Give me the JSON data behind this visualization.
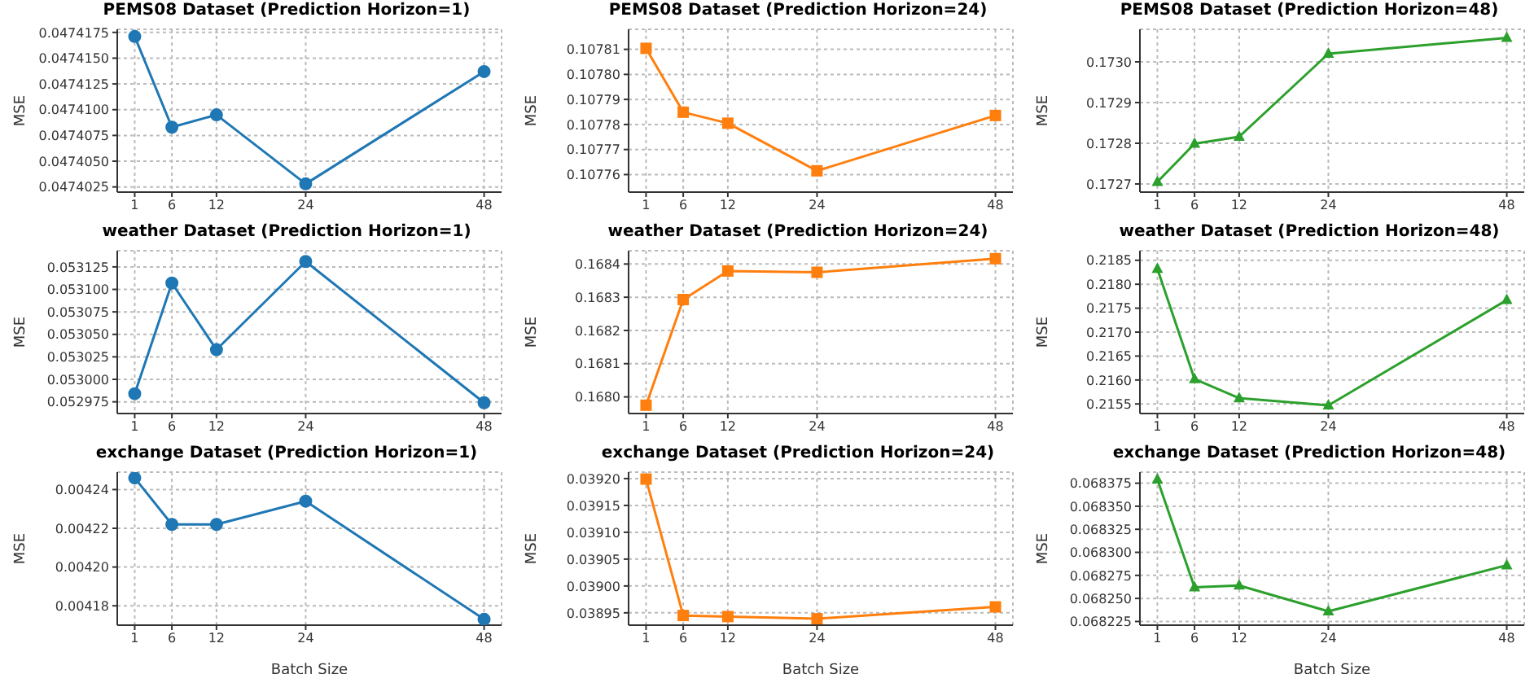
{
  "chart_data": [
    {
      "type": "line",
      "title": "PEMS08 Dataset (Prediction Horizon=1)",
      "ylabel": "MSE",
      "x": [
        1,
        6,
        12,
        24,
        48
      ],
      "xlim": [
        -1.35,
        50.35
      ],
      "xticks": [
        1,
        6,
        12,
        24,
        48
      ],
      "ylim": [
        0.047402,
        0.0474178
      ],
      "yticks": [
        0.0474025,
        {
          "value": 0.047405,
          "label": "0.0474050"
        },
        0.0474075,
        {
          "value": 0.04741,
          "label": "0.0474100"
        },
        0.0474125,
        {
          "value": 0.047415,
          "label": "0.0474150"
        },
        0.0474175
      ],
      "grid": true,
      "marker": "circle",
      "line_style": "solid",
      "series": [
        {
          "color": "#1f77b4",
          "values": [
            0.0474171,
            0.0474083,
            0.0474095,
            0.0474028,
            0.0474137
          ]
        }
      ]
    },
    {
      "type": "line",
      "title": "PEMS08 Dataset (Prediction Horizon=24)",
      "ylabel": "MSE",
      "x": [
        1,
        6,
        12,
        24,
        48
      ],
      "xlim": [
        -1.35,
        50.35
      ],
      "xticks": [
        1,
        6,
        12,
        24,
        48
      ],
      "ylim": [
        0.107753,
        0.107818
      ],
      "yticks": [
        0.10776,
        0.10777,
        0.10778,
        0.10779,
        {
          "value": 0.1078,
          "label": "0.10780"
        },
        0.10781
      ],
      "grid": true,
      "marker": "square",
      "line_style": "solid",
      "series": [
        {
          "color": "#ff7f0e",
          "values": [
            0.1078104,
            0.1077849,
            0.1077805,
            0.1077615,
            0.1077836
          ]
        }
      ]
    },
    {
      "type": "line",
      "title": "PEMS08 Dataset (Prediction Horizon=48)",
      "ylabel": "MSE",
      "x": [
        1,
        6,
        12,
        24,
        48
      ],
      "xlim": [
        -1.35,
        50.35
      ],
      "xticks": [
        1,
        6,
        12,
        24,
        48
      ],
      "ylim": [
        0.17268,
        0.17308
      ],
      "yticks": [
        0.1727,
        0.1728,
        0.1729,
        {
          "value": 0.173,
          "label": "0.1730"
        }
      ],
      "grid": true,
      "marker": "triangle",
      "line_style": "solid",
      "series": [
        {
          "color": "#2ca02c",
          "values": [
            0.172705,
            0.172799,
            0.172816,
            0.17302,
            0.173059
          ]
        }
      ]
    },
    {
      "type": "line",
      "title": "weather Dataset (Prediction Horizon=1)",
      "ylabel": "MSE",
      "x": [
        1,
        6,
        12,
        24,
        48
      ],
      "xlim": [
        -1.35,
        50.35
      ],
      "xticks": [
        1,
        6,
        12,
        24,
        48
      ],
      "ylim": [
        0.052962,
        0.053143
      ],
      "yticks": [
        0.052975,
        {
          "value": 0.053,
          "label": "0.053000"
        },
        0.053025,
        {
          "value": 0.05305,
          "label": "0.053050"
        },
        0.053075,
        {
          "value": 0.0531,
          "label": "0.053100"
        },
        0.053125
      ],
      "grid": true,
      "marker": "circle",
      "line_style": "solid",
      "series": [
        {
          "color": "#1f77b4",
          "values": [
            0.052984,
            0.053107,
            0.053033,
            0.053131,
            0.052974
          ]
        }
      ]
    },
    {
      "type": "line",
      "title": "weather Dataset (Prediction Horizon=24)",
      "ylabel": "MSE",
      "x": [
        1,
        6,
        12,
        24,
        48
      ],
      "xlim": [
        -1.35,
        50.35
      ],
      "xticks": [
        1,
        6,
        12,
        24,
        48
      ],
      "ylim": [
        0.16795,
        0.16844
      ],
      "yticks": [
        {
          "value": 0.168,
          "label": "0.1680"
        },
        0.1681,
        0.1682,
        0.1683,
        0.1684
      ],
      "grid": true,
      "marker": "square",
      "line_style": "solid",
      "series": [
        {
          "color": "#ff7f0e",
          "values": [
            0.167975,
            0.168293,
            0.168379,
            0.168375,
            0.168416
          ]
        }
      ]
    },
    {
      "type": "line",
      "title": "weather Dataset (Prediction Horizon=48)",
      "ylabel": "MSE",
      "x": [
        1,
        6,
        12,
        24,
        48
      ],
      "xlim": [
        -1.35,
        50.35
      ],
      "xticks": [
        1,
        6,
        12,
        24,
        48
      ],
      "ylim": [
        0.2153,
        0.2187
      ],
      "yticks": [
        0.2155,
        {
          "value": 0.216,
          "label": "0.2160"
        },
        0.2165,
        {
          "value": 0.217,
          "label": "0.2170"
        },
        0.2175,
        {
          "value": 0.218,
          "label": "0.2180"
        },
        0.2185
      ],
      "grid": true,
      "marker": "triangle",
      "line_style": "solid",
      "series": [
        {
          "color": "#2ca02c",
          "values": [
            0.21832,
            0.21602,
            0.21562,
            0.21547,
            0.21767
          ]
        }
      ]
    },
    {
      "type": "line",
      "title": "exchange Dataset (Prediction Horizon=1)",
      "xlabel": "Batch Size",
      "ylabel": "MSE",
      "x": [
        1,
        6,
        12,
        24,
        48
      ],
      "xlim": [
        -1.35,
        50.35
      ],
      "xticks": [
        1,
        6,
        12,
        24,
        48
      ],
      "ylim": [
        0.00417,
        0.004249
      ],
      "yticks": [
        0.00418,
        {
          "value": 0.0042,
          "label": "0.00420"
        },
        0.00422,
        0.00424
      ],
      "grid": true,
      "marker": "circle",
      "line_style": "solid",
      "series": [
        {
          "color": "#1f77b4",
          "values": [
            0.004246,
            0.004222,
            0.004222,
            0.004234,
            0.004173
          ]
        }
      ]
    },
    {
      "type": "line",
      "title": "exchange Dataset (Prediction Horizon=24)",
      "xlabel": "Batch Size",
      "ylabel": "MSE",
      "x": [
        1,
        6,
        12,
        24,
        48
      ],
      "xlim": [
        -1.35,
        50.35
      ],
      "xticks": [
        1,
        6,
        12,
        24,
        48
      ],
      "ylim": [
        0.038927,
        0.039212
      ],
      "yticks": [
        0.03895,
        {
          "value": 0.039,
          "label": "0.03900"
        },
        0.03905,
        {
          "value": 0.0391,
          "label": "0.03910"
        },
        0.03915,
        {
          "value": 0.0392,
          "label": "0.03920"
        }
      ],
      "grid": true,
      "marker": "square",
      "line_style": "solid",
      "series": [
        {
          "color": "#ff7f0e",
          "values": [
            0.039199,
            0.038945,
            0.038943,
            0.038939,
            0.038961
          ]
        }
      ]
    },
    {
      "type": "line",
      "title": "exchange Dataset (Prediction Horizon=48)",
      "xlabel": "Batch Size",
      "ylabel": "MSE",
      "x": [
        1,
        6,
        12,
        24,
        48
      ],
      "xlim": [
        -1.35,
        50.35
      ],
      "xticks": [
        1,
        6,
        12,
        24,
        48
      ],
      "ylim": [
        0.068221,
        0.068387
      ],
      "yticks": [
        0.068225,
        {
          "value": 0.06825,
          "label": "0.068250"
        },
        0.068275,
        {
          "value": 0.0683,
          "label": "0.068300"
        },
        0.068325,
        {
          "value": 0.06835,
          "label": "0.068350"
        },
        0.068375
      ],
      "grid": true,
      "marker": "triangle",
      "line_style": "solid",
      "series": [
        {
          "color": "#2ca02c",
          "values": [
            0.068379,
            0.068262,
            0.068264,
            0.068236,
            0.068286
          ]
        }
      ]
    }
  ]
}
